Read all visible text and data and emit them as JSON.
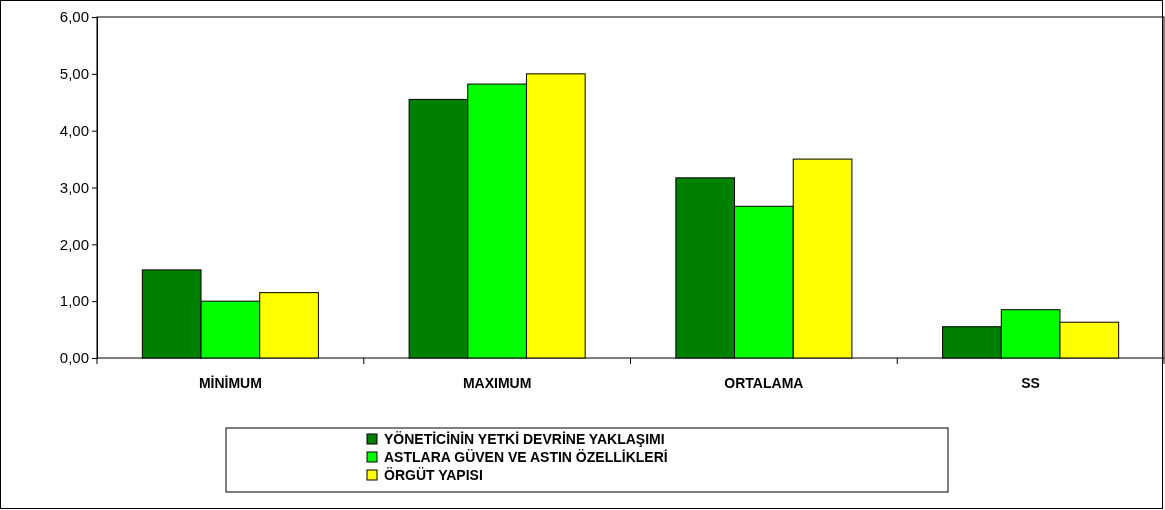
{
  "chart_data": {
    "type": "bar",
    "categories": [
      "MİNİMUM",
      "MAXIMUM",
      "ORTALAMA",
      "SS"
    ],
    "series": [
      {
        "name": "YÖNETİCİNİN YETKİ DEVRİNE YAKLAŞIMI",
        "color": "#008000",
        "values": [
          1.55,
          4.55,
          3.17,
          0.55
        ]
      },
      {
        "name": "ASTLARA GÜVEN VE ASTIN ÖZELLİKLERİ",
        "color": "#00ff00",
        "values": [
          1.0,
          4.82,
          2.67,
          0.85
        ]
      },
      {
        "name": "ÖRGÜT YAPISI",
        "color": "#ffff00",
        "values": [
          1.15,
          5.0,
          3.5,
          0.63
        ]
      }
    ],
    "ylim": [
      0,
      6
    ],
    "yticks": [
      {
        "value": 0,
        "label": "0,00"
      },
      {
        "value": 1,
        "label": "1,00"
      },
      {
        "value": 2,
        "label": "2,00"
      },
      {
        "value": 3,
        "label": "3,00"
      },
      {
        "value": 4,
        "label": "4,00"
      },
      {
        "value": 5,
        "label": "5,00"
      },
      {
        "value": 6,
        "label": "6,00"
      }
    ],
    "grid": false,
    "legend": "bottom"
  }
}
